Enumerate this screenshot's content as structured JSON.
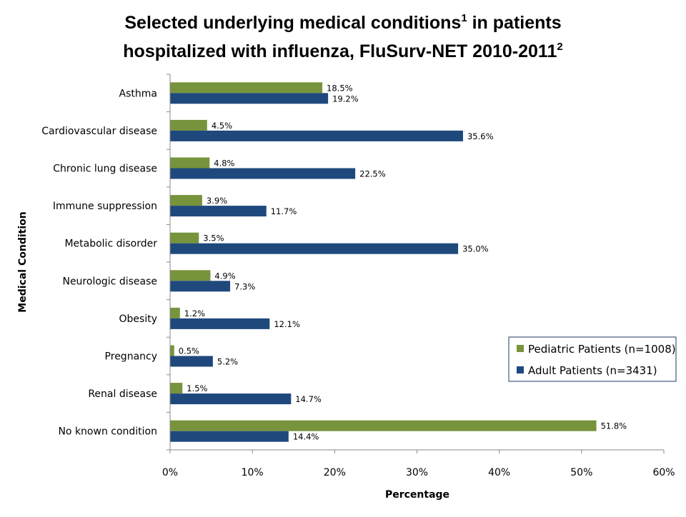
{
  "chart_data": {
    "type": "bar",
    "orientation": "horizontal",
    "title_line1": "Selected underlying medical conditions",
    "title_sup1": "1",
    "title_line1_end": " in patients",
    "title_line2": "hospitalized with influenza, FluSurv-NET 2010-2011",
    "title_sup2": "2",
    "xlabel": "Percentage",
    "ylabel": "Medical Condition",
    "xlim": [
      0,
      60
    ],
    "xticks": [
      "0%",
      "10%",
      "20%",
      "30%",
      "40%",
      "50%",
      "60%"
    ],
    "categories": [
      "Asthma",
      "Cardiovascular disease",
      "Chronic lung disease",
      "Immune suppression",
      "Metabolic disorder",
      "Neurologic disease",
      "Obesity",
      "Pregnancy",
      "Renal disease",
      "No known condition"
    ],
    "series": [
      {
        "name": "Pediatric Patients (n=1008)",
        "color": "#77933C",
        "values": [
          18.5,
          4.5,
          4.8,
          3.9,
          3.5,
          4.9,
          1.2,
          0.5,
          1.5,
          51.8
        ]
      },
      {
        "name": "Adult Patients (n=3431)",
        "color": "#1F497D",
        "values": [
          19.2,
          35.6,
          22.5,
          11.7,
          35.0,
          7.3,
          12.1,
          5.2,
          14.7,
          14.4
        ]
      }
    ],
    "legend_position": "right",
    "grid": false
  }
}
